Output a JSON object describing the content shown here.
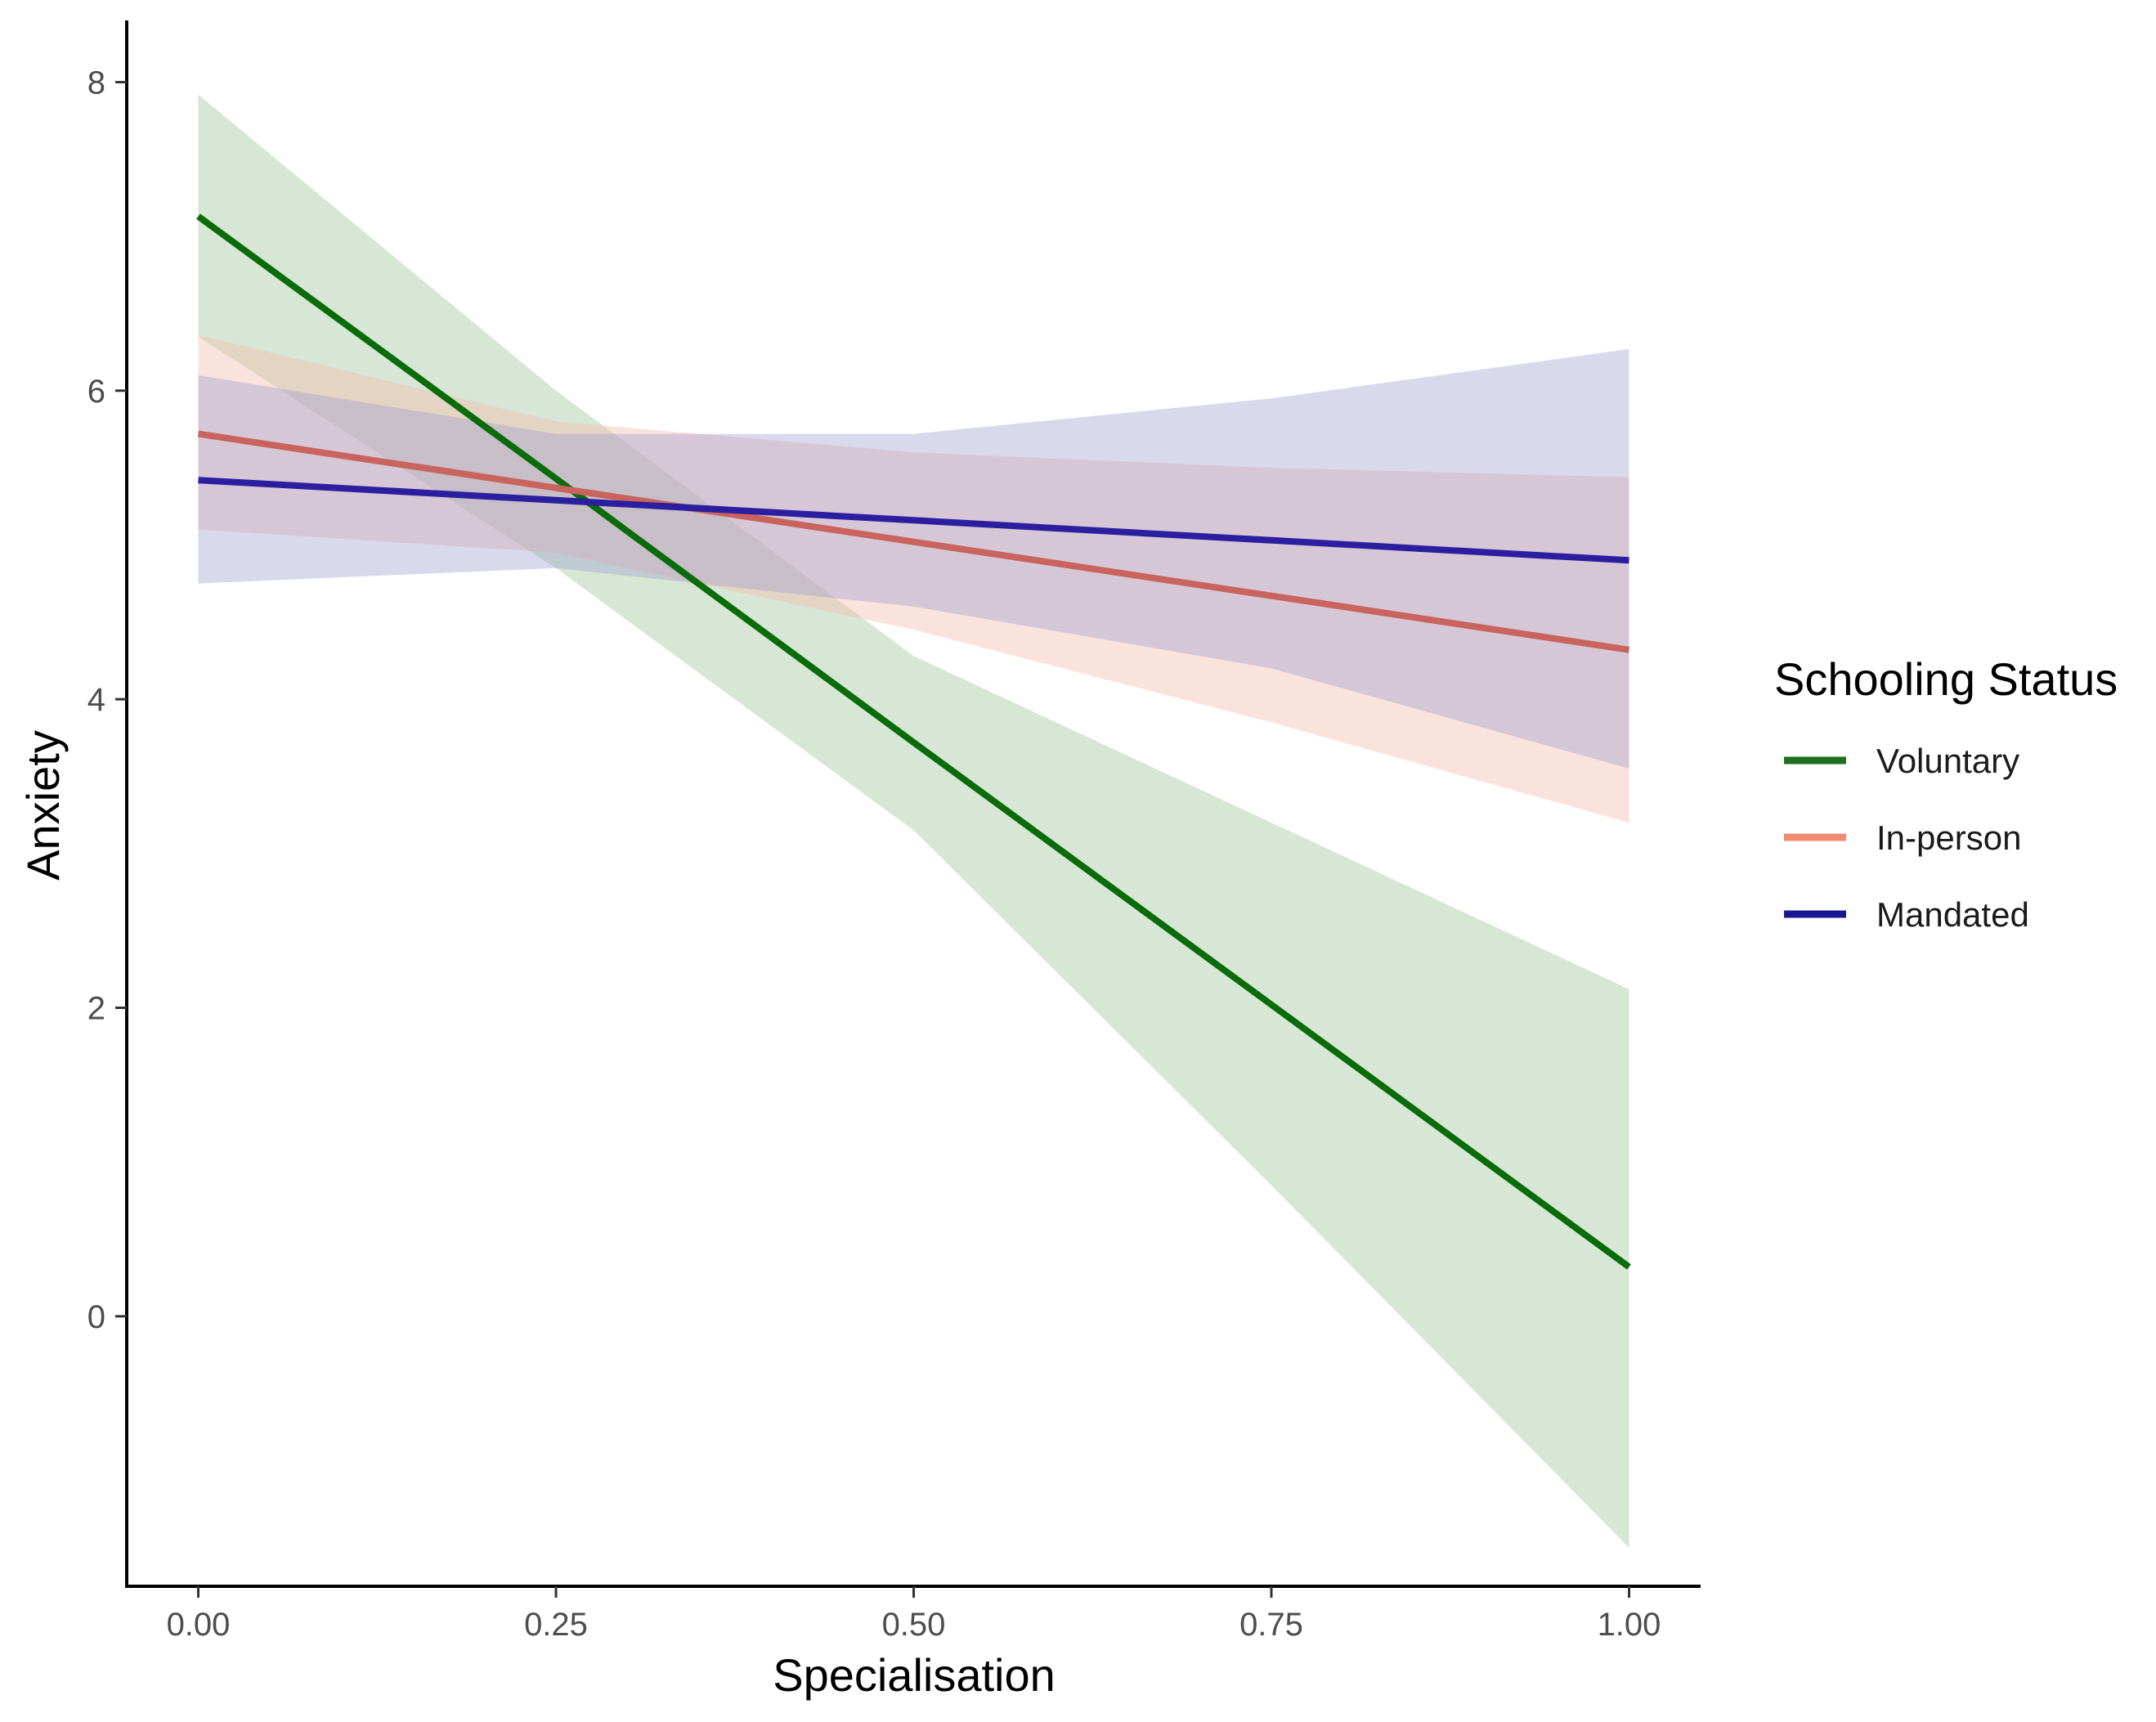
{
  "chart_data": {
    "type": "line",
    "title": "",
    "xlabel": "Specialisation",
    "ylabel": "Anxiety",
    "xlim": [
      -0.05,
      1.05
    ],
    "ylim": [
      -1.75,
      8.4
    ],
    "x_ticks": [
      0,
      0.25,
      0.5,
      0.75,
      1
    ],
    "x_tick_labels": [
      "0.00",
      "0.25",
      "0.50",
      "0.75",
      "1.00"
    ],
    "y_ticks": [
      0,
      2,
      4,
      6,
      8
    ],
    "y_tick_labels": [
      "0",
      "2",
      "4",
      "6",
      "8"
    ],
    "grid": false,
    "legend": {
      "title": "Schooling Status",
      "placement": "right"
    },
    "series": [
      {
        "name": "Voluntary",
        "line_color": "#0a6b0a",
        "legend_color": "#1e6e1e",
        "band_color": "#a9c8a4",
        "band_opacity": 0.45,
        "x": [
          0,
          0.25,
          0.5,
          0.75,
          1
        ],
        "y": [
          7.13,
          5.43,
          3.72,
          2.02,
          0.32
        ],
        "lower": [
          6.35,
          4.85,
          3.15,
          0.85,
          -1.5
        ],
        "upper": [
          7.92,
          6.0,
          4.28,
          3.2,
          2.12
        ]
      },
      {
        "name": "In-person",
        "line_color": "#c8635e",
        "legend_color": "#f08a70",
        "band_color": "#f6b8aa",
        "band_opacity": 0.4,
        "x": [
          0,
          0.25,
          0.5,
          0.75,
          1
        ],
        "y": [
          5.72,
          5.37,
          5.02,
          4.67,
          4.32
        ],
        "lower": [
          5.1,
          4.95,
          4.45,
          3.85,
          3.2
        ],
        "upper": [
          6.36,
          5.8,
          5.6,
          5.5,
          5.44
        ]
      },
      {
        "name": "Mandated",
        "line_color": "#2b1fa0",
        "legend_color": "#1a1890",
        "band_color": "#9a9ccc",
        "band_opacity": 0.38,
        "x": [
          0,
          0.25,
          0.5,
          0.75,
          1
        ],
        "y": [
          5.42,
          5.29,
          5.16,
          5.03,
          4.9
        ],
        "lower": [
          4.75,
          4.85,
          4.6,
          4.2,
          3.55
        ],
        "upper": [
          6.1,
          5.72,
          5.72,
          5.95,
          6.27
        ]
      }
    ]
  }
}
